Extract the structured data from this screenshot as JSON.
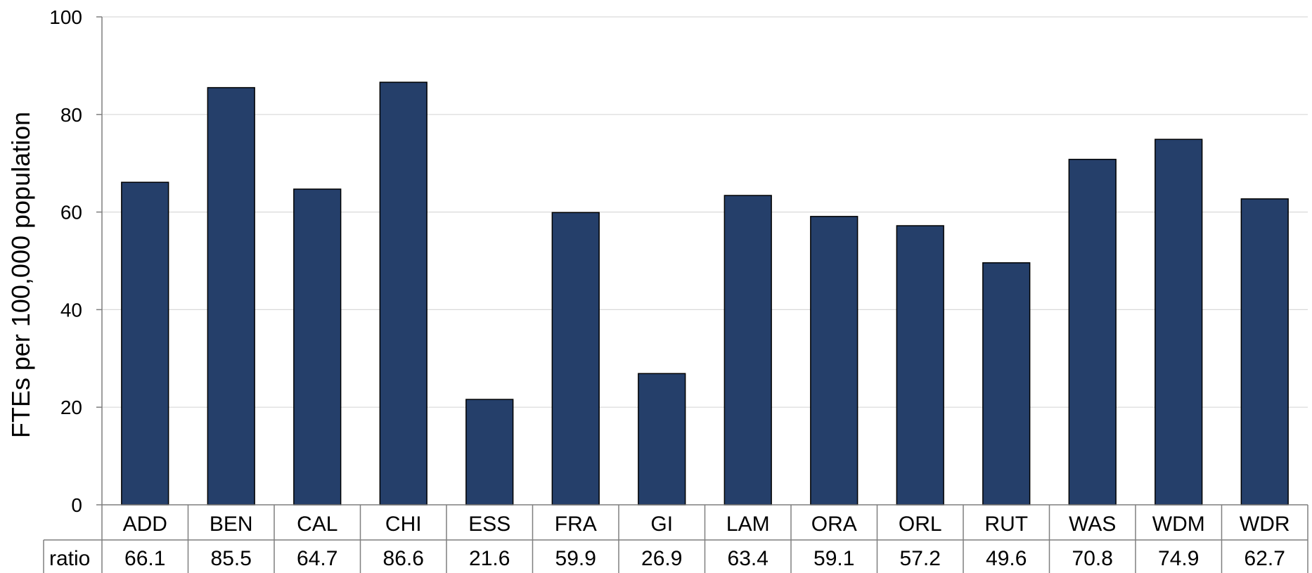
{
  "chart_data": {
    "type": "bar",
    "title": "",
    "xlabel": "",
    "ylabel": "FTEs per 100,000 population",
    "categories": [
      "ADD",
      "BEN",
      "CAL",
      "CHI",
      "ESS",
      "FRA",
      "GI",
      "LAM",
      "ORA",
      "ORL",
      "RUT",
      "WAS",
      "WDM",
      "WDR"
    ],
    "series": [
      {
        "name": "ratio",
        "values": [
          66.1,
          85.5,
          64.7,
          86.6,
          21.6,
          59.9,
          26.9,
          63.4,
          59.1,
          57.2,
          49.6,
          70.8,
          74.9,
          62.7
        ],
        "color": "#253F6A"
      }
    ],
    "value_labels": [
      "66.1",
      "85.5",
      "64.7",
      "86.6",
      "21.6",
      "59.9",
      "26.9",
      "63.4",
      "59.1",
      "57.2",
      "49.6",
      "70.8",
      "74.9",
      "62.7"
    ],
    "ylim": [
      0,
      100
    ],
    "yticks": [
      "0",
      "20",
      "40",
      "60",
      "80",
      "100"
    ],
    "grid": true,
    "legend": "none",
    "data_table": true
  }
}
